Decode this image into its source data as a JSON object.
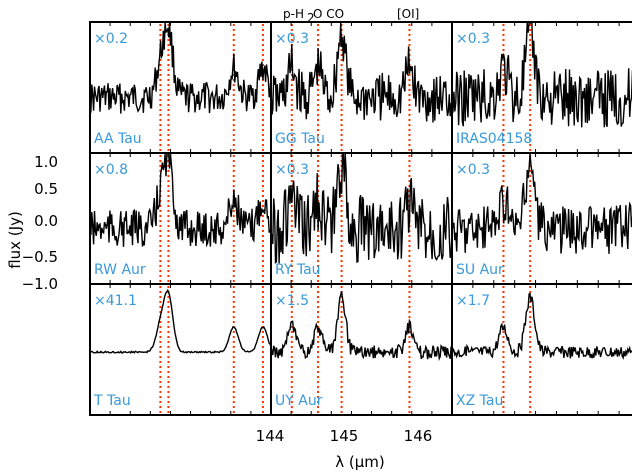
{
  "chart_data": {
    "type": "line",
    "xlabel": "λ (μm)",
    "ylabel": "flux (Jy)",
    "x_ticks": [
      "144",
      "145",
      "146"
    ],
    "y_ticks": [
      "1.0",
      "0.5",
      "0.0",
      "−0.5",
      "−1.0"
    ],
    "ylim": [
      -1.0,
      1.0
    ],
    "line_markers": {
      "labels": [
        "p-H",
        "2",
        "O CO",
        "[OI]"
      ],
      "positions_um": [
        143.5,
        143.58,
        144.23,
        144.52,
        144.78,
        145.53,
        146.52,
        146.79
      ]
    },
    "panels": [
      {
        "name": "AA Tau",
        "scale": "×0.2",
        "xlim": [
          142.8,
          144.6
        ]
      },
      {
        "name": "GG Tau",
        "scale": "×0.3",
        "xlim": [
          144.0,
          146.0
        ]
      },
      {
        "name": "IRAS04158",
        "scale": "×0.3",
        "xlim": [
          146.0,
          147.9
        ]
      },
      {
        "name": "RW Aur",
        "scale": "×0.8",
        "xlim": [
          142.8,
          144.6
        ]
      },
      {
        "name": "RY Tau",
        "scale": "×0.3",
        "xlim": [
          144.0,
          146.0
        ]
      },
      {
        "name": "SU Aur",
        "scale": "×0.3",
        "xlim": [
          146.0,
          147.9
        ]
      },
      {
        "name": "T Tau",
        "scale": "×41.1",
        "xlim": [
          142.8,
          144.6
        ]
      },
      {
        "name": "UY Aur",
        "scale": "×1.5",
        "xlim": [
          144.0,
          146.0
        ]
      },
      {
        "name": "XZ Tau",
        "scale": "×1.7",
        "xlim": [
          146.0,
          147.9
        ]
      }
    ]
  },
  "colors": {
    "panel_label": "#3a9ad9",
    "marker_line": "#ff3300",
    "spectrum": "#000000"
  }
}
